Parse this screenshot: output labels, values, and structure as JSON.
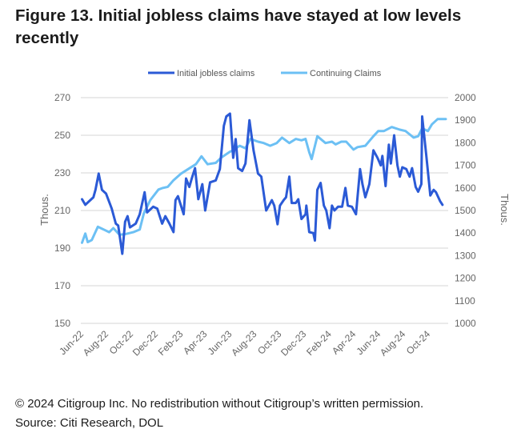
{
  "title": "Figure 13. Initial jobless claims have stayed at low levels recently",
  "footer": {
    "copyright": "© 2024 Citigroup Inc. No redistribution without Citigroup’s written permission.",
    "source": "Source: Citi Research, DOL"
  },
  "chart_data": {
    "type": "line",
    "title": "",
    "legend_position": "top",
    "grid": "horizontal",
    "xlim": [
      "2022-06-01",
      "2024-11-15"
    ],
    "x_ticks": [
      {
        "label": "Jun-22",
        "date": "2022-06-01"
      },
      {
        "label": "Aug-22",
        "date": "2022-08-01"
      },
      {
        "label": "Oct-22",
        "date": "2022-10-01"
      },
      {
        "label": "Dec-22",
        "date": "2022-12-01"
      },
      {
        "label": "Feb-23",
        "date": "2023-02-01"
      },
      {
        "label": "Apr-23",
        "date": "2023-04-01"
      },
      {
        "label": "Jun-23",
        "date": "2023-06-01"
      },
      {
        "label": "Aug-23",
        "date": "2023-08-01"
      },
      {
        "label": "Oct-23",
        "date": "2023-10-01"
      },
      {
        "label": "Dec-23",
        "date": "2023-12-01"
      },
      {
        "label": "Feb-24",
        "date": "2024-02-01"
      },
      {
        "label": "Apr-24",
        "date": "2024-04-01"
      },
      {
        "label": "Jun-24",
        "date": "2024-06-01"
      },
      {
        "label": "Aug-24",
        "date": "2024-08-01"
      },
      {
        "label": "Oct-24",
        "date": "2024-10-01"
      }
    ],
    "y_left": {
      "label": "Thous.",
      "lim": [
        150,
        270
      ],
      "ticks": [
        "270",
        "250",
        "230",
        "210",
        "190",
        "170",
        "150"
      ]
    },
    "y_right": {
      "label": "Thous.",
      "lim": [
        1000,
        2000
      ],
      "ticks": [
        "2000",
        "1900",
        "1800",
        "1700",
        "1600",
        "1500",
        "1400",
        "1300",
        "1200",
        "1100",
        "1000"
      ]
    },
    "series": [
      {
        "name": "Initial jobless claims",
        "axis": "left",
        "color": "#2b5ad6",
        "x": [
          "2022-06-04",
          "2022-06-12",
          "2022-07-02",
          "2022-07-07",
          "2022-07-15",
          "2022-07-23",
          "2022-08-02",
          "2022-08-16",
          "2022-08-26",
          "2022-09-01",
          "2022-09-11",
          "2022-09-18",
          "2022-09-24",
          "2022-09-30",
          "2022-10-14",
          "2022-10-24",
          "2022-11-05",
          "2022-11-11",
          "2022-11-26",
          "2022-12-06",
          "2022-12-18",
          "2022-12-26",
          "2023-01-05",
          "2023-01-15",
          "2023-01-20",
          "2023-01-26",
          "2023-02-09",
          "2023-02-15",
          "2023-02-23",
          "2023-03-01",
          "2023-03-09",
          "2023-03-17",
          "2023-03-27",
          "2023-04-03",
          "2023-04-15",
          "2023-04-29",
          "2023-05-09",
          "2023-05-19",
          "2023-05-25",
          "2023-06-03",
          "2023-06-11",
          "2023-06-17",
          "2023-06-23",
          "2023-07-03",
          "2023-07-11",
          "2023-07-21",
          "2023-07-31",
          "2023-08-11",
          "2023-08-19",
          "2023-08-31",
          "2023-09-14",
          "2023-09-20",
          "2023-09-28",
          "2023-10-04",
          "2023-10-13",
          "2023-10-19",
          "2023-10-27",
          "2023-11-02",
          "2023-11-12",
          "2023-11-18",
          "2023-11-26",
          "2023-12-06",
          "2023-12-08",
          "2023-12-15",
          "2023-12-25",
          "2023-12-29",
          "2024-01-04",
          "2024-01-12",
          "2024-01-20",
          "2024-01-26",
          "2024-02-03",
          "2024-02-09",
          "2024-02-15",
          "2024-02-24",
          "2024-03-05",
          "2024-03-13",
          "2024-03-19",
          "2024-03-29",
          "2024-04-08",
          "2024-04-18",
          "2024-04-24",
          "2024-05-01",
          "2024-05-11",
          "2024-05-21",
          "2024-05-31",
          "2024-06-08",
          "2024-06-12",
          "2024-06-20",
          "2024-06-28",
          "2024-07-03",
          "2024-07-11",
          "2024-07-19",
          "2024-07-25",
          "2024-07-31",
          "2024-08-10",
          "2024-08-18",
          "2024-08-24",
          "2024-09-02",
          "2024-09-08",
          "2024-09-16",
          "2024-09-18",
          "2024-09-28",
          "2024-10-08",
          "2024-10-16",
          "2024-10-22",
          "2024-11-01",
          "2024-11-07"
        ],
        "values": [
          216,
          213,
          217,
          221,
          229.6,
          221,
          219,
          211,
          203,
          202,
          187,
          204,
          207,
          201,
          203,
          208,
          219.7,
          209,
          212,
          211,
          203,
          207,
          203,
          198.5,
          215.5,
          217.6,
          208,
          227,
          222.5,
          227,
          232.5,
          216,
          224,
          210,
          225,
          226,
          232,
          255,
          260,
          261.5,
          238,
          248,
          232.5,
          231,
          235,
          258,
          242,
          229.6,
          228,
          210,
          215.5,
          212.6,
          202.7,
          212.6,
          215.5,
          217,
          228,
          214,
          214,
          216,
          205.5,
          208,
          212.6,
          198.5,
          198,
          194,
          221,
          224.7,
          212.6,
          210,
          200.6,
          212.6,
          210,
          212,
          212,
          222,
          212.6,
          212,
          208,
          232,
          224,
          217,
          224,
          242,
          238,
          234,
          239,
          223,
          245,
          235,
          250,
          234,
          228,
          233,
          232,
          228,
          232.5,
          222.5,
          220,
          224,
          260,
          239.5,
          218,
          221,
          219.7,
          215,
          213
        ]
      },
      {
        "name": "Continuing Claims",
        "axis": "right",
        "color": "#6cc0f4",
        "x": [
          "2022-06-04",
          "2022-06-12",
          "2022-06-18",
          "2022-06-28",
          "2022-07-13",
          "2022-07-27",
          "2022-08-10",
          "2022-08-20",
          "2022-09-04",
          "2022-09-18",
          "2022-10-08",
          "2022-10-24",
          "2022-11-03",
          "2022-11-19",
          "2022-12-09",
          "2022-12-18",
          "2023-01-01",
          "2023-01-15",
          "2023-02-03",
          "2023-02-23",
          "2023-03-11",
          "2023-03-25",
          "2023-04-09",
          "2023-04-29",
          "2023-05-13",
          "2023-06-01",
          "2023-06-13",
          "2023-06-27",
          "2023-07-11",
          "2023-07-23",
          "2023-08-11",
          "2023-08-25",
          "2023-09-10",
          "2023-09-26",
          "2023-10-09",
          "2023-10-27",
          "2023-11-12",
          "2023-11-26",
          "2023-12-06",
          "2023-12-15",
          "2023-12-21",
          "2024-01-04",
          "2024-01-24",
          "2024-02-09",
          "2024-02-18",
          "2024-03-03",
          "2024-03-15",
          "2024-04-02",
          "2024-04-12",
          "2024-05-01",
          "2024-05-21",
          "2024-06-02",
          "2024-06-16",
          "2024-07-05",
          "2024-07-25",
          "2024-08-08",
          "2024-08-28",
          "2024-09-08",
          "2024-09-18",
          "2024-10-02",
          "2024-10-12",
          "2024-10-26",
          "2024-11-15"
        ],
        "values": [
          1357,
          1398,
          1360,
          1369,
          1428,
          1416,
          1404,
          1422,
          1393,
          1395,
          1404,
          1416,
          1487,
          1546,
          1593,
          1599,
          1605,
          1634,
          1664,
          1687,
          1705,
          1740,
          1705,
          1711,
          1735,
          1758,
          1770,
          1787,
          1776,
          1817,
          1805,
          1799,
          1787,
          1799,
          1823,
          1799,
          1817,
          1811,
          1817,
          1758,
          1728,
          1829,
          1799,
          1805,
          1793,
          1805,
          1805,
          1770,
          1781,
          1787,
          1829,
          1852,
          1852,
          1870,
          1858,
          1852,
          1823,
          1829,
          1864,
          1852,
          1882,
          1905,
          1905
        ]
      }
    ]
  }
}
